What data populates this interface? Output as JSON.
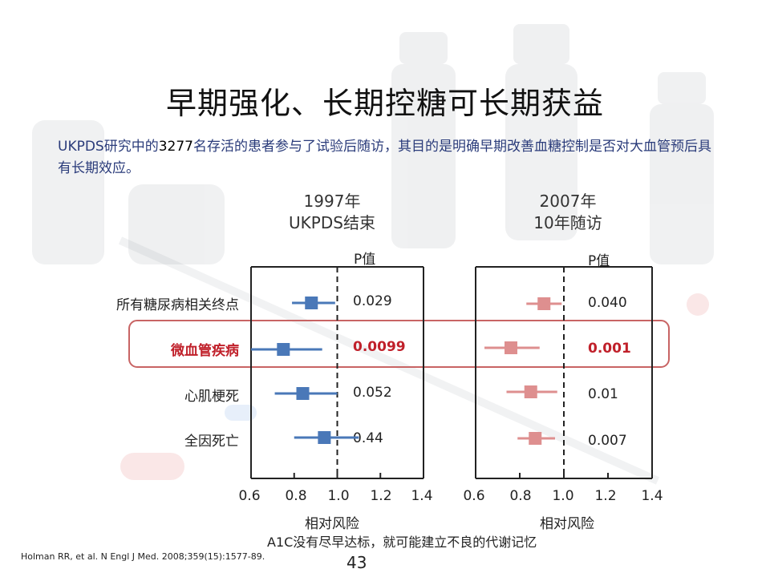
{
  "title": "早期强化、长期控糖可长期获益",
  "intro": {
    "prefix": "UKPDS研究中的",
    "number": "3277",
    "suffix": "名存活的患者参与了试验后随访，其目的是明确早期改善血糖控制是否对大血管预后具有长期效应。"
  },
  "footnote": "A1C没有尽早达标，就可能建立不良的代谢记忆",
  "citation": "Holman RR, et al. N Engl J Med. 2008;359(15):1577-89.",
  "page_number": "43",
  "colors": {
    "series1": "#4a78b8",
    "series2": "#de8f8f",
    "highlight": "#c0202a",
    "highlight_box": "#c86464"
  },
  "chart_data": [
    {
      "type": "scatter",
      "header": [
        "1997年",
        "UKPDS结束"
      ],
      "p_label": "P值",
      "xlabel": "相对风险",
      "xlim": [
        0.6,
        1.4
      ],
      "xticks": [
        "0.6",
        "0.8",
        "1.0",
        "1.2",
        "1.4"
      ],
      "reference_line": 1.0,
      "categories": [
        "所有糖尿病相关终点",
        "微血管疾病",
        "心肌梗死",
        "全因死亡"
      ],
      "highlighted_category": "微血管疾病",
      "points": [
        {
          "estimate": 0.88,
          "low": 0.79,
          "high": 0.99,
          "p": "0.029"
        },
        {
          "estimate": 0.75,
          "low": 0.6,
          "high": 0.93,
          "p": "0.0099"
        },
        {
          "estimate": 0.84,
          "low": 0.71,
          "high": 1.0,
          "p": "0.052"
        },
        {
          "estimate": 0.94,
          "low": 0.8,
          "high": 1.1,
          "p": "0.44"
        }
      ]
    },
    {
      "type": "scatter",
      "header": [
        "2007年",
        "10年随访"
      ],
      "p_label": "P值",
      "xlabel": "相对风险",
      "xlim": [
        0.6,
        1.4
      ],
      "xticks": [
        "0.6",
        "0.8",
        "1.0",
        "1.2",
        "1.4"
      ],
      "reference_line": 1.0,
      "categories": [
        "所有糖尿病相关终点",
        "微血管疾病",
        "心肌梗死",
        "全因死亡"
      ],
      "highlighted_category": "微血管疾病",
      "points": [
        {
          "estimate": 0.91,
          "low": 0.83,
          "high": 0.99,
          "p": "0.040"
        },
        {
          "estimate": 0.76,
          "low": 0.64,
          "high": 0.89,
          "p": "0.001"
        },
        {
          "estimate": 0.85,
          "low": 0.74,
          "high": 0.97,
          "p": "0.01"
        },
        {
          "estimate": 0.87,
          "low": 0.79,
          "high": 0.96,
          "p": "0.007"
        }
      ]
    }
  ]
}
